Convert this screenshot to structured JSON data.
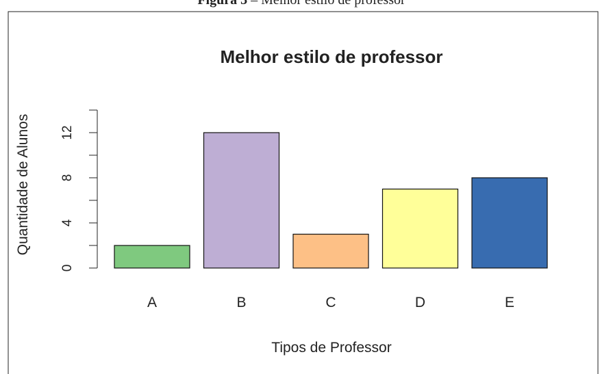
{
  "caption": {
    "label": "Figura 3",
    "text": "– Melhor estilo de professor"
  },
  "chart_data": {
    "type": "bar",
    "title": "Melhor estilo de professor",
    "xlabel": "Tipos de Professor",
    "ylabel": "Quantidade de Alunos",
    "categories": [
      "A",
      "B",
      "C",
      "D",
      "E"
    ],
    "values": [
      2,
      12,
      3,
      7,
      8
    ],
    "colors": [
      "#7fc97f",
      "#beaed4",
      "#fdc086",
      "#ffff99",
      "#386cb0"
    ],
    "ylim": [
      0,
      14
    ],
    "yticks": [
      0,
      4,
      8,
      12
    ],
    "minor_yticks": [
      2,
      6,
      10,
      14
    ]
  }
}
